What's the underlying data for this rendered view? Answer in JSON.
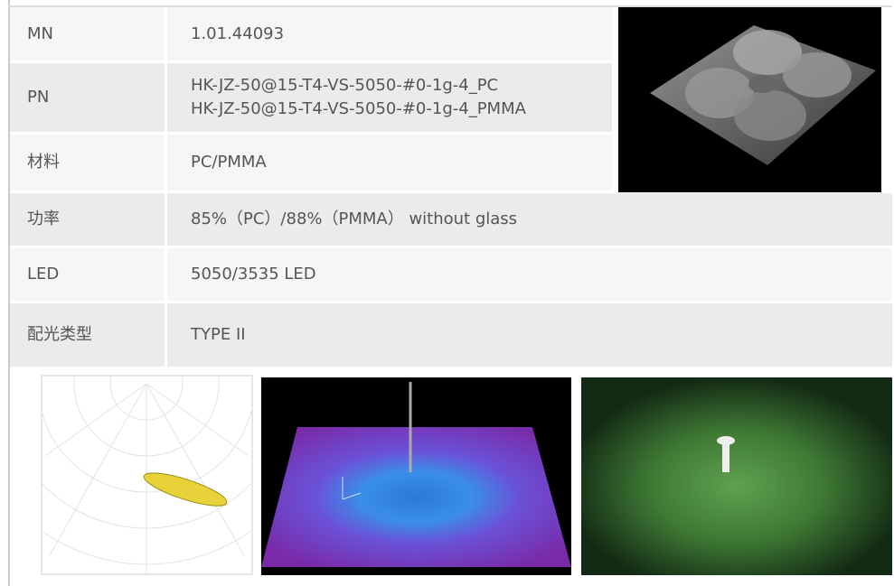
{
  "table": {
    "rows": [
      {
        "label": "MN",
        "lines": [
          "1.01.44093"
        ]
      },
      {
        "label": "PN",
        "lines": [
          "HK-JZ-50@15-T4-VS-5050-#0-1g-4_PC",
          "HK-JZ-50@15-T4-VS-5050-#0-1g-4_PMMA"
        ]
      },
      {
        "label": "材料",
        "lines": [
          "PC/PMMA"
        ]
      },
      {
        "label": "功率",
        "lines": [
          "85%（PC）/88%（PMMA） without glass"
        ]
      },
      {
        "label": "LED",
        "lines": [
          "5050/3535 LED"
        ]
      },
      {
        "label": "配光类型",
        "lines": [
          "TYPE II"
        ]
      }
    ]
  }
}
